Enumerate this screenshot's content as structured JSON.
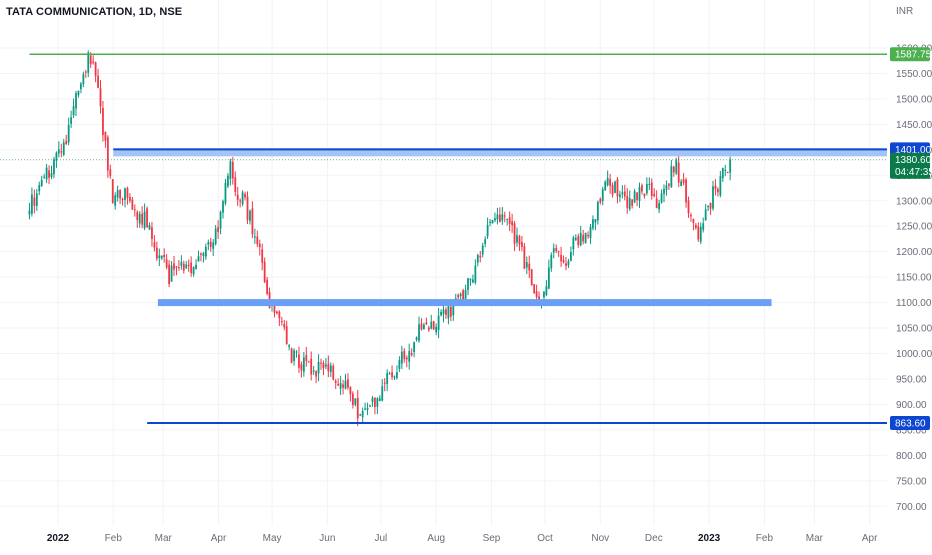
{
  "chart_data": {
    "type": "candlestick",
    "title": "TATA COMMUNICATION, 1D, NSE",
    "currency": "INR",
    "y_ticks": [
      700,
      750,
      800,
      850,
      900,
      950,
      1000,
      1050,
      1100,
      1150,
      1200,
      1250,
      1300,
      1350,
      1400,
      1450,
      1500,
      1550,
      1600
    ],
    "y_tick_labels": [
      "700.00",
      "750.00",
      "800.00",
      "850.00",
      "900.00",
      "950.00",
      "1000.00",
      "1050.00",
      "1100.00",
      "1150.00",
      "1200.00",
      "1250.00",
      "1300.00",
      "1350.00",
      "1400.00",
      "1450.00",
      "1500.00",
      "1550.00",
      "1600.00"
    ],
    "ylim": [
      680,
      1700
    ],
    "x_labels": [
      {
        "label": "2022",
        "month": "2022-01"
      },
      {
        "label": "Feb",
        "month": "2022-02"
      },
      {
        "label": "Mar",
        "month": "2022-03"
      },
      {
        "label": "Apr",
        "month": "2022-04"
      },
      {
        "label": "May",
        "month": "2022-05"
      },
      {
        "label": "Jun",
        "month": "2022-06"
      },
      {
        "label": "Jul",
        "month": "2022-07"
      },
      {
        "label": "Aug",
        "month": "2022-08"
      },
      {
        "label": "Sep",
        "month": "2022-09"
      },
      {
        "label": "Oct",
        "month": "2022-10"
      },
      {
        "label": "Nov",
        "month": "2022-11"
      },
      {
        "label": "Dec",
        "month": "2022-12"
      },
      {
        "label": "2023",
        "month": "2023-01"
      },
      {
        "label": "Feb",
        "month": "2023-02"
      },
      {
        "label": "Mar",
        "month": "2023-03"
      },
      {
        "label": "Apr",
        "month": "2023-04"
      }
    ],
    "price_path": [
      [
        "2021-12-16",
        1290
      ],
      [
        "2021-12-23",
        1330
      ],
      [
        "2021-12-30",
        1380
      ],
      [
        "2022-01-05",
        1420
      ],
      [
        "2022-01-10",
        1490
      ],
      [
        "2022-01-14",
        1520
      ],
      [
        "2022-01-18",
        1585
      ],
      [
        "2022-01-21",
        1560
      ],
      [
        "2022-01-24",
        1500
      ],
      [
        "2022-01-28",
        1390
      ],
      [
        "2022-02-01",
        1300
      ],
      [
        "2022-02-04",
        1305
      ],
      [
        "2022-02-09",
        1320
      ],
      [
        "2022-02-14",
        1260
      ],
      [
        "2022-02-18",
        1270
      ],
      [
        "2022-02-24",
        1210
      ],
      [
        "2022-02-28",
        1190
      ],
      [
        "2022-03-04",
        1150
      ],
      [
        "2022-03-09",
        1180
      ],
      [
        "2022-03-15",
        1165
      ],
      [
        "2022-03-21",
        1180
      ],
      [
        "2022-03-25",
        1215
      ],
      [
        "2022-03-31",
        1235
      ],
      [
        "2022-04-04",
        1300
      ],
      [
        "2022-04-07",
        1370
      ],
      [
        "2022-04-11",
        1320
      ],
      [
        "2022-04-14",
        1310
      ],
      [
        "2022-04-20",
        1250
      ],
      [
        "2022-04-25",
        1200
      ],
      [
        "2022-04-28",
        1120
      ],
      [
        "2022-05-02",
        1085
      ],
      [
        "2022-05-06",
        1070
      ],
      [
        "2022-05-11",
        1000
      ],
      [
        "2022-05-16",
        985
      ],
      [
        "2022-05-20",
        980
      ],
      [
        "2022-05-25",
        965
      ],
      [
        "2022-05-31",
        990
      ],
      [
        "2022-06-06",
        950
      ],
      [
        "2022-06-10",
        935
      ],
      [
        "2022-06-15",
        915
      ],
      [
        "2022-06-20",
        870
      ],
      [
        "2022-06-24",
        895
      ],
      [
        "2022-06-30",
        910
      ],
      [
        "2022-07-06",
        960
      ],
      [
        "2022-07-12",
        985
      ],
      [
        "2022-07-18",
        1010
      ],
      [
        "2022-07-25",
        1070
      ],
      [
        "2022-07-29",
        1050
      ],
      [
        "2022-08-04",
        1080
      ],
      [
        "2022-08-10",
        1090
      ],
      [
        "2022-08-16",
        1115
      ],
      [
        "2022-08-22",
        1160
      ],
      [
        "2022-08-26",
        1200
      ],
      [
        "2022-08-31",
        1265
      ],
      [
        "2022-09-06",
        1270
      ],
      [
        "2022-09-12",
        1240
      ],
      [
        "2022-09-16",
        1215
      ],
      [
        "2022-09-22",
        1160
      ],
      [
        "2022-09-27",
        1110
      ],
      [
        "2022-09-30",
        1120
      ],
      [
        "2022-10-06",
        1200
      ],
      [
        "2022-10-12",
        1180
      ],
      [
        "2022-10-18",
        1220
      ],
      [
        "2022-10-25",
        1235
      ],
      [
        "2022-10-31",
        1290
      ],
      [
        "2022-11-04",
        1330
      ],
      [
        "2022-11-10",
        1320
      ],
      [
        "2022-11-16",
        1300
      ],
      [
        "2022-11-22",
        1310
      ],
      [
        "2022-11-28",
        1325
      ],
      [
        "2022-12-02",
        1300
      ],
      [
        "2022-12-08",
        1325
      ],
      [
        "2022-12-13",
        1375
      ],
      [
        "2022-12-16",
        1340
      ],
      [
        "2022-12-21",
        1280
      ],
      [
        "2022-12-26",
        1240
      ],
      [
        "2022-12-30",
        1270
      ],
      [
        "2023-01-04",
        1320
      ],
      [
        "2023-01-09",
        1350
      ],
      [
        "2023-01-13",
        1380.6
      ]
    ],
    "horizontal_levels": [
      {
        "value": 1587.75,
        "label": "1587.75",
        "color": "#4caf50",
        "from": "2021-12-16"
      },
      {
        "value": 1401.0,
        "label": "1401.00",
        "color": "#0d47d1",
        "from": "2022-02-01",
        "band": true
      },
      {
        "value": 1100.0,
        "label": "",
        "color": "#6b9ff5",
        "from": "2022-02-26",
        "to": "2023-02-05",
        "band": true
      },
      {
        "value": 863.6,
        "label": "863.60",
        "color": "#0d47d1",
        "from": "2022-02-20"
      }
    ],
    "last_price": {
      "value": 1380.6,
      "label": "1380.60",
      "countdown": "04:47:35",
      "color": "#0b7a4b"
    },
    "colors": {
      "up": "#089981",
      "down": "#f23645",
      "grid": "#f0f3fa",
      "text": "#131722"
    }
  }
}
